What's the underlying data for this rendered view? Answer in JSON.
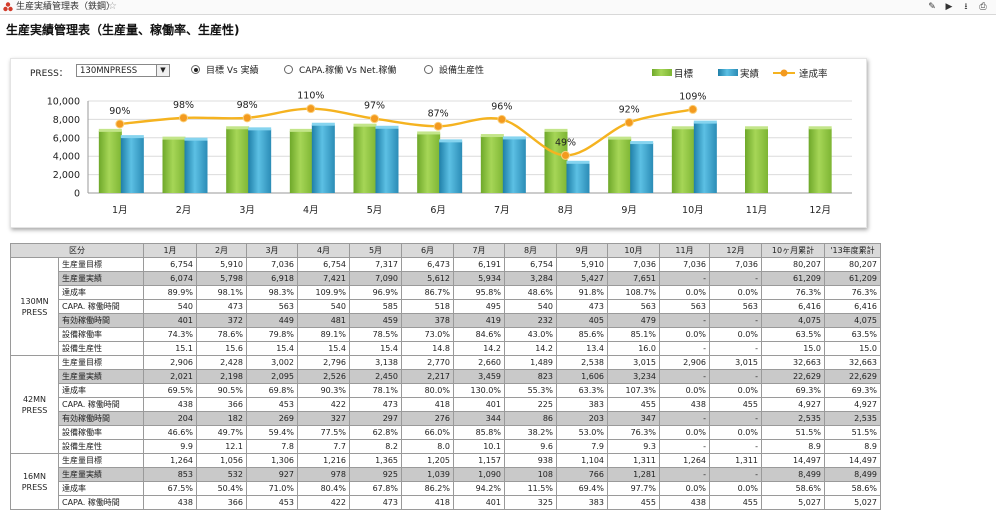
{
  "window": {
    "title": "生産実績管理表（鉄鋼）"
  },
  "report_title": "生産実績管理表（生産量、稼働率、生産性)",
  "press_filter": {
    "label": "PRESS：",
    "value": "130MNPRESS"
  },
  "radio_options": [
    {
      "label": "目標 Vs 実績",
      "selected": true
    },
    {
      "label": "CAPA.稼働 Vs Net.稼働",
      "selected": false
    },
    {
      "label": "設備生産性",
      "selected": false
    }
  ],
  "chart_data": {
    "type": "bar",
    "categories": [
      "1月",
      "2月",
      "3月",
      "4月",
      "5月",
      "6月",
      "7月",
      "8月",
      "9月",
      "10月",
      "11月",
      "12月"
    ],
    "series": [
      {
        "name": "目標",
        "type": "bar",
        "color": "#92c83e",
        "values": [
          6754,
          5910,
          7036,
          6754,
          7317,
          6473,
          6191,
          6754,
          5910,
          7036,
          7036,
          7036
        ]
      },
      {
        "name": "実績",
        "type": "bar",
        "color": "#3aa0c8",
        "values": [
          6074,
          5798,
          6918,
          7421,
          7090,
          5612,
          5934,
          3284,
          5427,
          7651,
          null,
          null
        ]
      },
      {
        "name": "達成率",
        "type": "line",
        "color": "#f5a623",
        "values": [
          90,
          98,
          98,
          110,
          97,
          87,
          96,
          49,
          92,
          109,
          null,
          null
        ]
      }
    ],
    "ylim": [
      0,
      10000
    ],
    "yticks": [
      "0",
      "2,000",
      "4,000",
      "6,000",
      "8,000",
      "10,000"
    ],
    "ratio_labels": [
      "90%",
      "98%",
      "98%",
      "110%",
      "97%",
      "87%",
      "96%",
      "49%",
      "92%",
      "109%"
    ],
    "grid": true,
    "legend": "top-right"
  },
  "table": {
    "headers": [
      "区分",
      "",
      "1月",
      "2月",
      "3月",
      "4月",
      "5月",
      "6月",
      "7月",
      "8月",
      "9月",
      "10月",
      "11月",
      "12月",
      "10ヶ月累計",
      "'13年度累計"
    ],
    "groups": [
      {
        "name": "130MN PRESS",
        "rows": [
          {
            "label": "生産量目標",
            "gray": false,
            "values": [
              "6,754",
              "5,910",
              "7,036",
              "6,754",
              "7,317",
              "6,473",
              "6,191",
              "6,754",
              "5,910",
              "7,036",
              "7,036",
              "7,036",
              "80,207",
              "80,207"
            ]
          },
          {
            "label": "生産量実績",
            "gray": true,
            "values": [
              "6,074",
              "5,798",
              "6,918",
              "7,421",
              "7,090",
              "5,612",
              "5,934",
              "3,284",
              "5,427",
              "7,651",
              "-",
              "-",
              "61,209",
              "61,209"
            ]
          },
          {
            "label": "達成率",
            "gray": false,
            "values": [
              "89.9%",
              "98.1%",
              "98.3%",
              "109.9%",
              "96.9%",
              "86.7%",
              "95.8%",
              "48.6%",
              "91.8%",
              "108.7%",
              "0.0%",
              "0.0%",
              "76.3%",
              "76.3%"
            ]
          },
          {
            "label": "CAPA. 稼働時間",
            "gray": false,
            "values": [
              "540",
              "473",
              "563",
              "540",
              "585",
              "518",
              "495",
              "540",
              "473",
              "563",
              "563",
              "563",
              "6,416",
              "6,416"
            ]
          },
          {
            "label": "有効稼働時間",
            "gray": true,
            "values": [
              "401",
              "372",
              "449",
              "481",
              "459",
              "378",
              "419",
              "232",
              "405",
              "479",
              "-",
              "-",
              "4,075",
              "4,075"
            ]
          },
          {
            "label": "設備稼働率",
            "gray": false,
            "values": [
              "74.3%",
              "78.6%",
              "79.8%",
              "89.1%",
              "78.5%",
              "73.0%",
              "84.6%",
              "43.0%",
              "85.6%",
              "85.1%",
              "0.0%",
              "0.0%",
              "63.5%",
              "63.5%"
            ]
          },
          {
            "label": "設備生産性",
            "gray": false,
            "values": [
              "15.1",
              "15.6",
              "15.4",
              "15.4",
              "15.4",
              "14.8",
              "14.2",
              "14.2",
              "13.4",
              "16.0",
              "-",
              "-",
              "15.0",
              "15.0"
            ]
          }
        ]
      },
      {
        "name": "42MN PRESS",
        "rows": [
          {
            "label": "生産量目標",
            "gray": false,
            "values": [
              "2,906",
              "2,428",
              "3,002",
              "2,796",
              "3,138",
              "2,770",
              "2,660",
              "1,489",
              "2,538",
              "3,015",
              "2,906",
              "3,015",
              "32,663",
              "32,663"
            ]
          },
          {
            "label": "生産量実績",
            "gray": true,
            "values": [
              "2,021",
              "2,198",
              "2,095",
              "2,526",
              "2,450",
              "2,217",
              "3,459",
              "823",
              "1,606",
              "3,234",
              "-",
              "-",
              "22,629",
              "22,629"
            ]
          },
          {
            "label": "達成率",
            "gray": false,
            "values": [
              "69.5%",
              "90.5%",
              "69.8%",
              "90.3%",
              "78.1%",
              "80.0%",
              "130.0%",
              "55.3%",
              "63.3%",
              "107.3%",
              "0.0%",
              "0.0%",
              "69.3%",
              "69.3%"
            ]
          },
          {
            "label": "CAPA. 稼働時間",
            "gray": false,
            "values": [
              "438",
              "366",
              "453",
              "422",
              "473",
              "418",
              "401",
              "225",
              "383",
              "455",
              "438",
              "455",
              "4,927",
              "4,927"
            ]
          },
          {
            "label": "有効稼働時間",
            "gray": true,
            "values": [
              "204",
              "182",
              "269",
              "327",
              "297",
              "276",
              "344",
              "86",
              "203",
              "347",
              "-",
              "-",
              "2,535",
              "2,535"
            ]
          },
          {
            "label": "設備稼働率",
            "gray": false,
            "values": [
              "46.6%",
              "49.7%",
              "59.4%",
              "77.5%",
              "62.8%",
              "66.0%",
              "85.8%",
              "38.2%",
              "53.0%",
              "76.3%",
              "0.0%",
              "0.0%",
              "51.5%",
              "51.5%"
            ]
          },
          {
            "label": "設備生産性",
            "gray": false,
            "values": [
              "9.9",
              "12.1",
              "7.8",
              "7.7",
              "8.2",
              "8.0",
              "10.1",
              "9.6",
              "7.9",
              "9.3",
              "-",
              "-",
              "8.9",
              "8.9"
            ]
          }
        ]
      },
      {
        "name": "16MN PRESS",
        "rows": [
          {
            "label": "生産量目標",
            "gray": false,
            "values": [
              "1,264",
              "1,056",
              "1,306",
              "1,216",
              "1,365",
              "1,205",
              "1,157",
              "938",
              "1,104",
              "1,311",
              "1,264",
              "1,311",
              "14,497",
              "14,497"
            ]
          },
          {
            "label": "生産量実績",
            "gray": true,
            "values": [
              "853",
              "532",
              "927",
              "978",
              "925",
              "1,039",
              "1,090",
              "108",
              "766",
              "1,281",
              "-",
              "-",
              "8,499",
              "8,499"
            ]
          },
          {
            "label": "達成率",
            "gray": false,
            "values": [
              "67.5%",
              "50.4%",
              "71.0%",
              "80.4%",
              "67.8%",
              "86.2%",
              "94.2%",
              "11.5%",
              "69.4%",
              "97.7%",
              "0.0%",
              "0.0%",
              "58.6%",
              "58.6%"
            ]
          },
          {
            "label": "CAPA. 稼働時間",
            "gray": false,
            "values": [
              "438",
              "366",
              "453",
              "422",
              "473",
              "418",
              "401",
              "325",
              "383",
              "455",
              "438",
              "455",
              "5,027",
              "5,027"
            ]
          }
        ]
      }
    ]
  }
}
